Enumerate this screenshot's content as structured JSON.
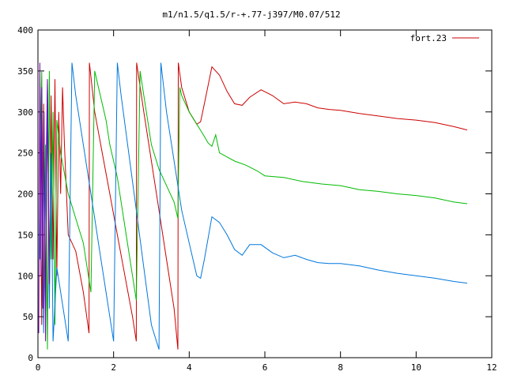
{
  "chart_data": {
    "type": "line",
    "title": "m1/n1.5/q1.5/r-+.77-j397/M0.07/512",
    "xlabel": "",
    "ylabel": "",
    "xlim": [
      0,
      12
    ],
    "ylim": [
      0,
      400
    ],
    "x_ticks": [
      0,
      2,
      4,
      6,
      8,
      10,
      12
    ],
    "y_ticks": [
      0,
      50,
      100,
      150,
      200,
      250,
      300,
      350,
      400
    ],
    "grid": false,
    "legend": {
      "position": "top-right",
      "entries": [
        "fort.23"
      ]
    },
    "series": [
      {
        "name": "fort.23",
        "color": "#cc0000",
        "x": [
          0.05,
          0.1,
          0.15,
          0.2,
          0.25,
          0.3,
          0.35,
          0.4,
          0.45,
          0.5,
          0.55,
          0.6,
          0.65,
          0.7,
          0.8,
          1.0,
          1.2,
          1.35,
          1.36,
          1.5,
          1.7,
          1.9,
          2.1,
          2.3,
          2.5,
          2.6,
          2.61,
          2.8,
          3.0,
          3.2,
          3.4,
          3.6,
          3.7,
          3.71,
          3.8,
          4.0,
          4.2,
          4.3,
          4.4,
          4.6,
          4.8,
          5.0,
          5.2,
          5.4,
          5.6,
          5.9,
          6.2,
          6.5,
          6.8,
          7.1,
          7.4,
          7.7,
          8.0,
          8.5,
          9.0,
          9.5,
          10.0,
          10.5,
          11.0,
          11.35
        ],
        "values": [
          300,
          40,
          310,
          60,
          330,
          80,
          320,
          120,
          340,
          100,
          300,
          200,
          330,
          260,
          150,
          130,
          80,
          30,
          360,
          300,
          250,
          200,
          150,
          100,
          50,
          20,
          360,
          300,
          240,
          180,
          120,
          60,
          10,
          360,
          330,
          300,
          285,
          288,
          310,
          355,
          345,
          325,
          310,
          308,
          318,
          327,
          320,
          310,
          312,
          310,
          305,
          303,
          302,
          298,
          295,
          292,
          290,
          287,
          282,
          278
        ]
      },
      {
        "name": "",
        "color": "#00bb00",
        "x": [
          0.05,
          0.1,
          0.15,
          0.2,
          0.25,
          0.3,
          0.35,
          0.4,
          0.45,
          0.5,
          0.6,
          0.8,
          1.0,
          1.2,
          1.3,
          1.4,
          1.5,
          1.6,
          1.7,
          1.8,
          1.9,
          2.0,
          2.1,
          2.2,
          2.3,
          2.4,
          2.5,
          2.6,
          2.7,
          2.8,
          2.9,
          3.0,
          3.2,
          3.4,
          3.6,
          3.7,
          3.75,
          3.8,
          4.0,
          4.2,
          4.4,
          4.5,
          4.6,
          4.7,
          4.8,
          5.0,
          5.2,
          5.5,
          5.8,
          6.0,
          6.5,
          7.0,
          7.5,
          8.0,
          8.5,
          9.0,
          9.5,
          10.0,
          10.5,
          11.0,
          11.35
        ],
        "values": [
          250,
          350,
          60,
          260,
          10,
          350,
          120,
          300,
          40,
          290,
          250,
          200,
          170,
          140,
          110,
          80,
          350,
          330,
          310,
          290,
          260,
          240,
          220,
          190,
          160,
          130,
          100,
          70,
          350,
          320,
          290,
          260,
          230,
          210,
          190,
          170,
          330,
          320,
          300,
          285,
          270,
          262,
          258,
          272,
          250,
          245,
          240,
          235,
          228,
          222,
          220,
          215,
          212,
          210,
          205,
          203,
          200,
          198,
          195,
          190,
          188
        ]
      },
      {
        "name": "",
        "color": "#0077dd",
        "x": [
          0.05,
          0.1,
          0.15,
          0.2,
          0.25,
          0.3,
          0.35,
          0.4,
          0.5,
          0.6,
          0.7,
          0.8,
          0.9,
          1.0,
          1.2,
          1.4,
          1.5,
          1.6,
          1.7,
          1.8,
          1.9,
          2.0,
          2.1,
          2.2,
          2.4,
          2.6,
          2.8,
          3.0,
          3.2,
          3.25,
          3.4,
          3.6,
          3.8,
          4.0,
          4.2,
          4.3,
          4.4,
          4.6,
          4.8,
          5.0,
          5.2,
          5.4,
          5.6,
          5.9,
          6.2,
          6.5,
          6.8,
          7.1,
          7.4,
          7.7,
          8.0,
          8.5,
          9.0,
          9.5,
          10.0,
          10.5,
          11.0,
          11.35
        ],
        "values": [
          120,
          330,
          30,
          200,
          340,
          60,
          250,
          20,
          110,
          80,
          50,
          20,
          360,
          320,
          260,
          200,
          170,
          140,
          110,
          80,
          50,
          20,
          360,
          320,
          250,
          180,
          110,
          40,
          10,
          360,
          300,
          240,
          180,
          140,
          100,
          97,
          120,
          172,
          165,
          150,
          132,
          125,
          138,
          138,
          128,
          122,
          125,
          120,
          116,
          115,
          115,
          112,
          107,
          103,
          100,
          97,
          93,
          91
        ]
      },
      {
        "name": "",
        "color": "#7700aa",
        "x": [
          0.02,
          0.05,
          0.08,
          0.1,
          0.13,
          0.16,
          0.2,
          0.25,
          0.3
        ],
        "values": [
          30,
          360,
          100,
          330,
          60,
          300,
          20,
          340,
          90
        ]
      }
    ]
  }
}
